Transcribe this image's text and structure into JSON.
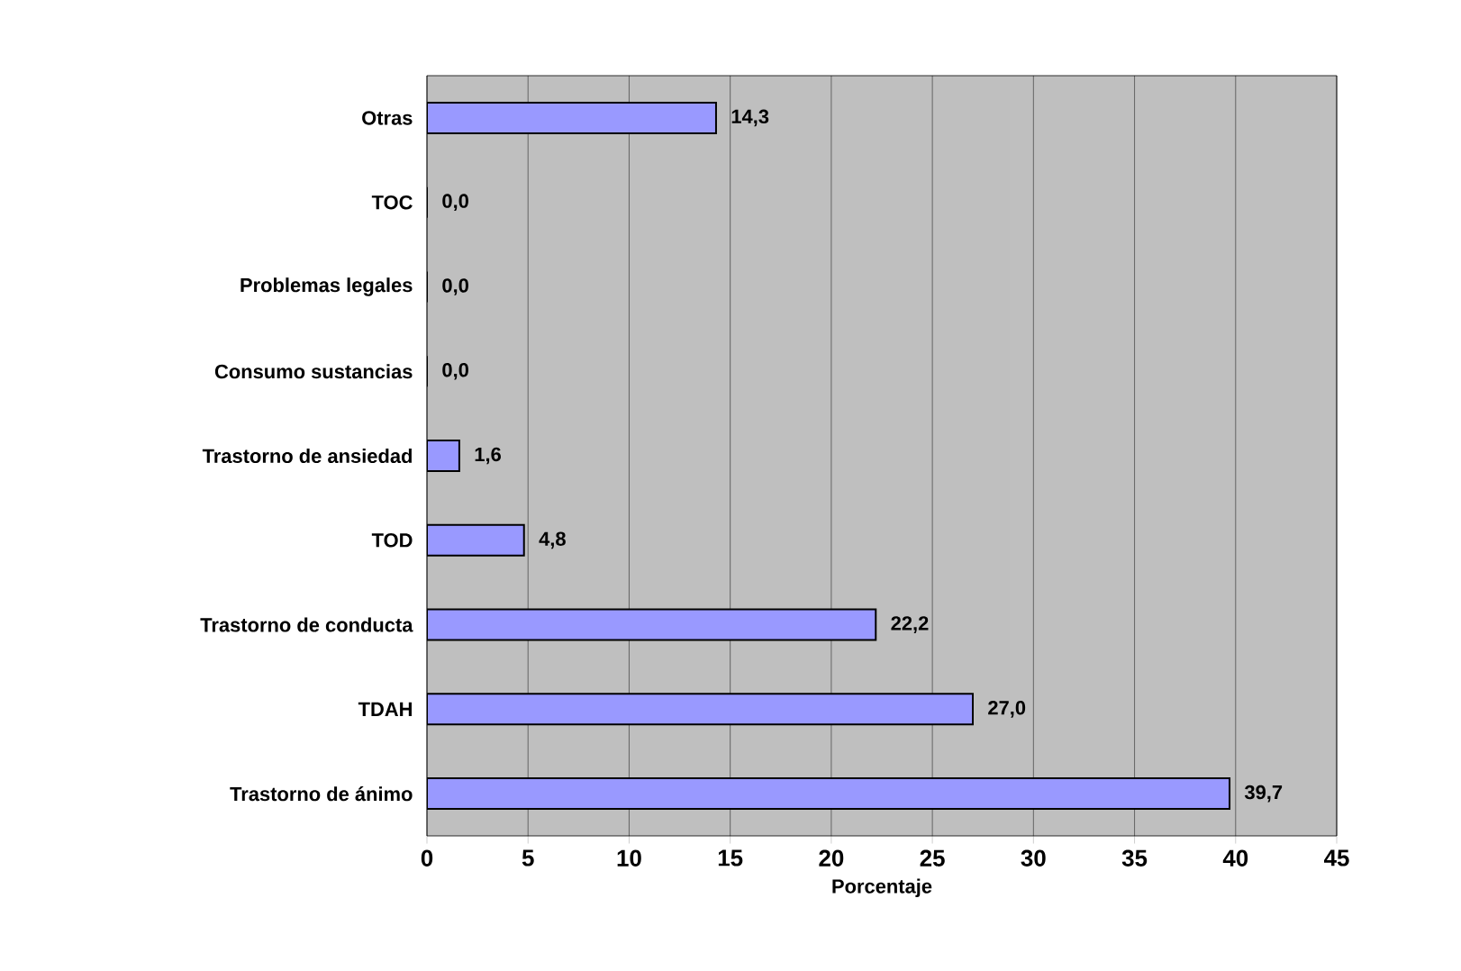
{
  "chart_data": {
    "type": "bar",
    "orientation": "horizontal",
    "categories": [
      "Otras",
      "TOC",
      "Problemas legales",
      "Consumo sustancias",
      "Trastorno de ansiedad",
      "TOD",
      "Trastorno de conducta",
      "TDAH",
      "Trastorno de ánimo"
    ],
    "values": [
      14.3,
      0.0,
      0.0,
      0.0,
      1.6,
      4.8,
      22.2,
      27.0,
      39.7
    ],
    "value_labels": [
      "14,3",
      "0,0",
      "0,0",
      "0,0",
      "1,6",
      "4,8",
      "22,2",
      "27,0",
      "39,7"
    ],
    "color": "#9999ff",
    "xlabel": "Porcentaje",
    "xlim": [
      0,
      45
    ],
    "xticks": [
      0,
      5,
      10,
      15,
      20,
      25,
      30,
      35,
      40,
      45
    ],
    "grid": "x"
  }
}
